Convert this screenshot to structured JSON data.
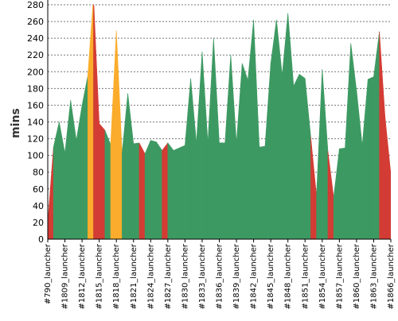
{
  "chart_data": {
    "type": "area",
    "title": "",
    "xlabel": "",
    "ylabel": "mins",
    "ylim": [
      0,
      280
    ],
    "y_ticks": [
      0,
      20,
      40,
      60,
      80,
      100,
      120,
      140,
      160,
      180,
      200,
      220,
      240,
      260,
      280
    ],
    "grid": true,
    "legend": "none",
    "status_colors": {
      "success": "#3d9962",
      "failure": "#d33c34",
      "unstable": "#fbac2c"
    },
    "x_tick_labels": [
      "#790_launcher",
      "#1809_launcher",
      "#1812_launcher",
      "#1815_launcher",
      "#1818_launcher",
      "#1821_launcher",
      "#1824_launcher",
      "#1827_launcher",
      "#1830_launcher",
      "#1833_launcher",
      "#1836_launcher",
      "#1839_launcher",
      "#1842_launcher",
      "#1845_launcher",
      "#1848_launcher",
      "#1851_launcher",
      "#1854_launcher",
      "#1857_launcher",
      "#1860_launcher",
      "#1863_launcher",
      "#1866_launcher"
    ],
    "x_tick_every": 3,
    "builds": [
      {
        "value": 20,
        "status": "success"
      },
      {
        "value": 110,
        "status": "failure"
      },
      {
        "value": 140,
        "status": "success"
      },
      {
        "value": 103,
        "status": "success"
      },
      {
        "value": 166,
        "status": "success"
      },
      {
        "value": 118,
        "status": "success"
      },
      {
        "value": 160,
        "status": "success"
      },
      {
        "value": 195,
        "status": "success"
      },
      {
        "value": 290,
        "status": "unstable"
      },
      {
        "value": 138,
        "status": "failure"
      },
      {
        "value": 130,
        "status": "failure"
      },
      {
        "value": 113,
        "status": "success"
      },
      {
        "value": 249,
        "status": "unstable"
      },
      {
        "value": 103,
        "status": "unstable"
      },
      {
        "value": 174,
        "status": "success"
      },
      {
        "value": 114,
        "status": "success"
      },
      {
        "value": 115,
        "status": "success"
      },
      {
        "value": 102,
        "status": "failure"
      },
      {
        "value": 118,
        "status": "success"
      },
      {
        "value": 116,
        "status": "success"
      },
      {
        "value": 106,
        "status": "success"
      },
      {
        "value": 115,
        "status": "failure"
      },
      {
        "value": 106,
        "status": "success"
      },
      {
        "value": 109,
        "status": "success"
      },
      {
        "value": 112,
        "status": "success"
      },
      {
        "value": 192,
        "status": "success"
      },
      {
        "value": 115,
        "status": "success"
      },
      {
        "value": 224,
        "status": "success"
      },
      {
        "value": 115,
        "status": "success"
      },
      {
        "value": 240,
        "status": "success"
      },
      {
        "value": 115,
        "status": "success"
      },
      {
        "value": 115,
        "status": "success"
      },
      {
        "value": 220,
        "status": "success"
      },
      {
        "value": 115,
        "status": "success"
      },
      {
        "value": 210,
        "status": "success"
      },
      {
        "value": 190,
        "status": "success"
      },
      {
        "value": 262,
        "status": "success"
      },
      {
        "value": 110,
        "status": "success"
      },
      {
        "value": 111,
        "status": "success"
      },
      {
        "value": 210,
        "status": "success"
      },
      {
        "value": 262,
        "status": "success"
      },
      {
        "value": 196,
        "status": "success"
      },
      {
        "value": 270,
        "status": "success"
      },
      {
        "value": 183,
        "status": "success"
      },
      {
        "value": 197,
        "status": "success"
      },
      {
        "value": 192,
        "status": "success"
      },
      {
        "value": 122,
        "status": "success"
      },
      {
        "value": 52,
        "status": "failure"
      },
      {
        "value": 203,
        "status": "success"
      },
      {
        "value": 105,
        "status": "success"
      },
      {
        "value": 50,
        "status": "failure"
      },
      {
        "value": 108,
        "status": "success"
      },
      {
        "value": 109,
        "status": "success"
      },
      {
        "value": 234,
        "status": "success"
      },
      {
        "value": 178,
        "status": "success"
      },
      {
        "value": 112,
        "status": "success"
      },
      {
        "value": 191,
        "status": "success"
      },
      {
        "value": 194,
        "status": "success"
      },
      {
        "value": 248,
        "status": "success"
      },
      {
        "value": 145,
        "status": "failure"
      },
      {
        "value": 78,
        "status": "failure"
      }
    ]
  }
}
